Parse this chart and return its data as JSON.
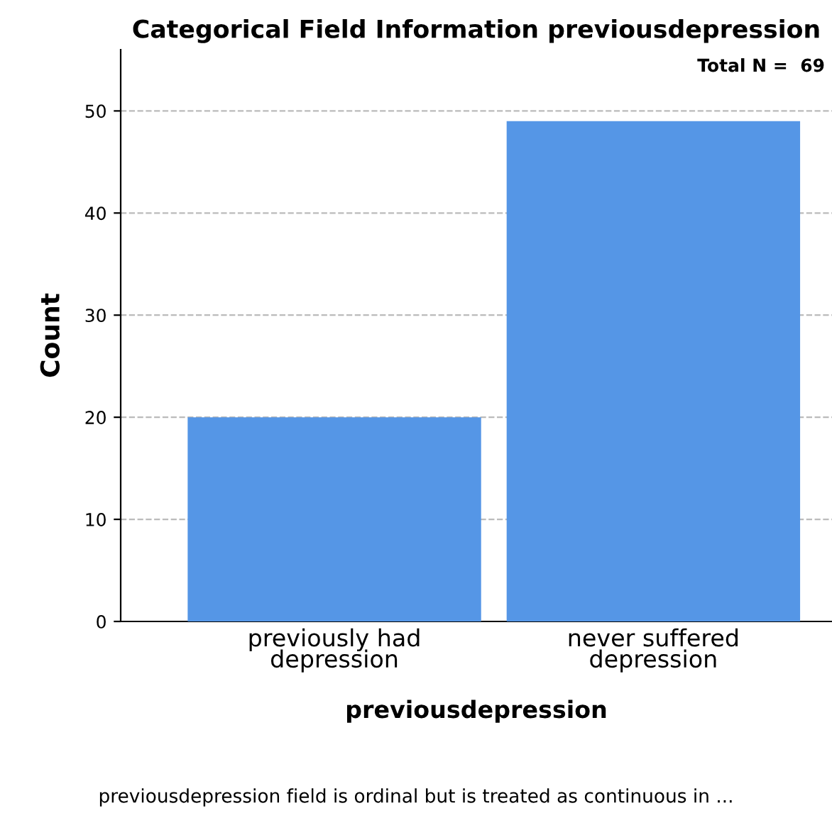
{
  "chart_data": {
    "type": "bar",
    "title": "Categorical Field Information previousdepression",
    "xlabel": "previousdepression",
    "ylabel": "Count",
    "categories": [
      "previously had\ndepression",
      "never suffered\ndepression"
    ],
    "values": [
      20,
      49
    ],
    "color": "#5596e6",
    "ylim": [
      0,
      56
    ],
    "yticks": [
      0,
      10,
      20,
      30,
      40,
      50
    ],
    "grid": "y",
    "annotations": [
      "Total N =  69",
      "previousdepression field is ordinal but is treated as continuous in ..."
    ]
  }
}
